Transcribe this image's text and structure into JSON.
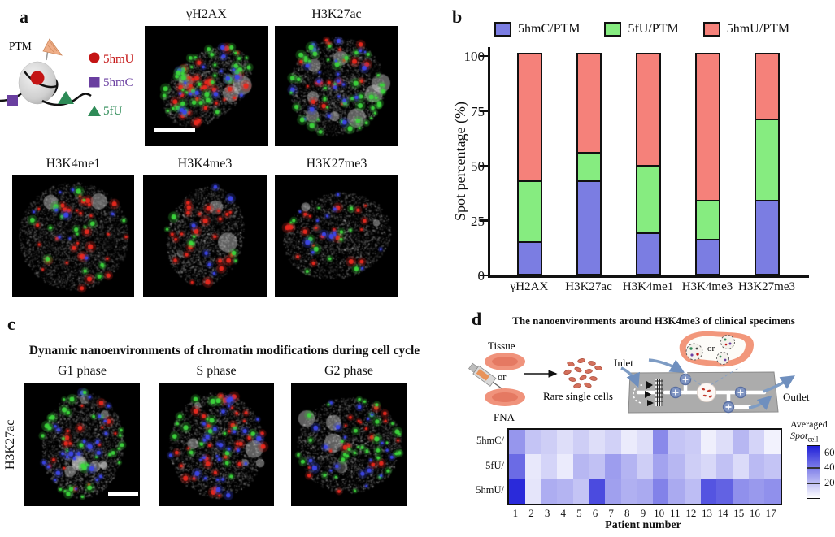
{
  "figure": {
    "panels": {
      "a": {
        "label": "a",
        "schematic": {
          "ptm_label": "PTM",
          "legend": [
            {
              "label": "5hmU",
              "marker": "circle",
              "color": "#c41414"
            },
            {
              "label": "5hmC",
              "marker": "square",
              "color": "#6a3fa0"
            },
            {
              "label": "5fU",
              "marker": "triangle",
              "color": "#2e8b57"
            }
          ]
        },
        "micrographs": [
          "γH2AX",
          "H3K27ac",
          "H3K4me1",
          "H3K4me3",
          "H3K27me3"
        ]
      },
      "b": {
        "label": "b"
      },
      "c": {
        "label": "c",
        "title": "Dynamic nanoenvironments of chromatin modifications during cell cycle",
        "row_label": "H3K27ac",
        "phases": [
          "G1 phase",
          "S phase",
          "G2 phase"
        ]
      },
      "d": {
        "label": "d",
        "title": "The nanoenvironments around H3K4me3 of clinical specimens",
        "workflow": {
          "tissue_label": "Tissue",
          "or_label": "or",
          "fna_label": "FNA",
          "cells_label": "Rare single cells",
          "inlet_label": "Inlet",
          "outlet_label": "Outlet",
          "blob_or_label": "or"
        }
      }
    }
  },
  "chart_data": [
    {
      "type": "bar",
      "stacked": true,
      "categories": [
        "γH2AX",
        "H3K27ac",
        "H3K4me1",
        "H3K4me3",
        "H3K27me3"
      ],
      "series": [
        {
          "name": "5hmC/PTM",
          "color": "#7b7de2",
          "values": [
            14,
            42,
            18,
            15,
            33
          ]
        },
        {
          "name": "5fU/PTM",
          "color": "#86ec80",
          "values": [
            28,
            13,
            31,
            18,
            37
          ]
        },
        {
          "name": "5hmU/PTM",
          "color": "#f5817a",
          "values": [
            58,
            45,
            51,
            67,
            30
          ]
        }
      ],
      "ylabel": "Spot percentage (%)",
      "yticks": [
        0,
        25,
        50,
        75,
        100
      ],
      "ylim": [
        0,
        100
      ],
      "legend_position": "top",
      "grid": false
    },
    {
      "type": "heatmap",
      "rows": [
        "5hmC/",
        "5fU/",
        "5hmU/"
      ],
      "columns": [
        1,
        2,
        3,
        4,
        5,
        6,
        7,
        8,
        9,
        10,
        11,
        12,
        13,
        14,
        15,
        16,
        17
      ],
      "values": [
        [
          32,
          18,
          15,
          10,
          15,
          10,
          14,
          6,
          10,
          36,
          18,
          16,
          5,
          10,
          22,
          13,
          4
        ],
        [
          45,
          7,
          13,
          6,
          22,
          19,
          30,
          23,
          15,
          28,
          22,
          15,
          12,
          19,
          11,
          21,
          18
        ],
        [
          65,
          8,
          25,
          23,
          18,
          55,
          29,
          24,
          26,
          38,
          26,
          20,
          52,
          48,
          34,
          31,
          34
        ]
      ],
      "xlabel": "Patient number",
      "scale_max": 68,
      "colorbar": {
        "title_line1": "Averaged",
        "title_italic": "Spot",
        "title_sub": "cell",
        "ticks": [
          60,
          40,
          20
        ],
        "color_high": "#2020d8",
        "color_low": "#ffffff"
      }
    }
  ]
}
